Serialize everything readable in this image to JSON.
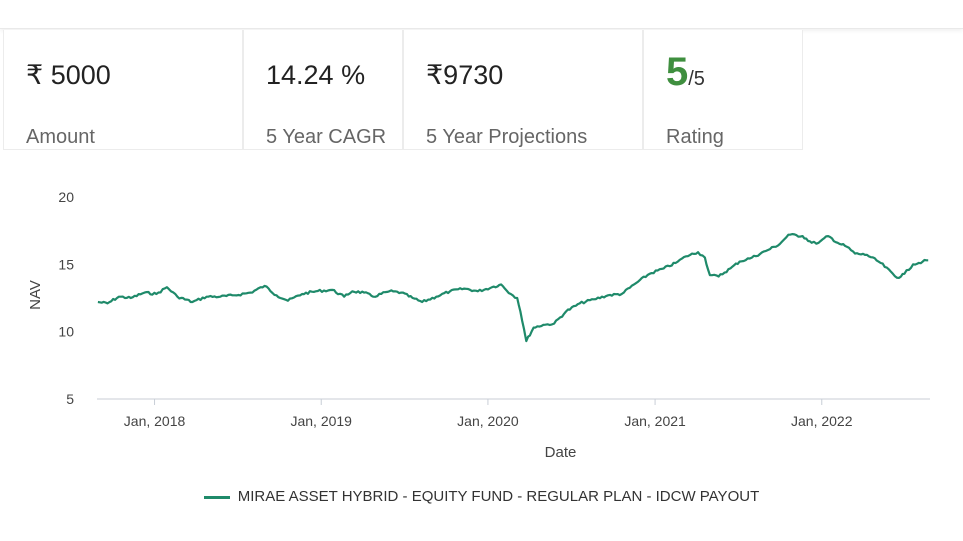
{
  "summary": {
    "amount": {
      "currency_symbol": "₹",
      "value": "5000",
      "label": "Amount"
    },
    "cagr": {
      "value": "14.24 %",
      "label": "5 Year CAGR"
    },
    "projection": {
      "value": "₹9730",
      "label": "5 Year Projections"
    },
    "rating": {
      "value": "5",
      "out_of": "/5",
      "label": "Rating",
      "color": "#3f8f3f"
    }
  },
  "chart_data": {
    "type": "line",
    "xlabel": "Date",
    "ylabel": "NAV",
    "ylim": [
      5,
      20
    ],
    "yticks": [
      5,
      10,
      15,
      20
    ],
    "xlim": [
      "2017-08-28",
      "2022-08-26"
    ],
    "xticks": [
      {
        "date": "2018-01-01",
        "label": "Jan, 2018"
      },
      {
        "date": "2019-01-01",
        "label": "Jan, 2019"
      },
      {
        "date": "2020-01-01",
        "label": "Jan, 2020"
      },
      {
        "date": "2021-01-01",
        "label": "Jan, 2021"
      },
      {
        "date": "2022-01-01",
        "label": "Jan, 2022"
      }
    ],
    "grid": false,
    "legend_position": "bottom-center",
    "series": [
      {
        "name": "MIRAE ASSET HYBRID - EQUITY FUND - REGULAR PLAN - IDCW PAYOUT",
        "color": "#1f8a6a",
        "points": [
          [
            "2017-08-30",
            12.2
          ],
          [
            "2017-09-20",
            12.1
          ],
          [
            "2017-10-15",
            12.6
          ],
          [
            "2017-11-10",
            12.5
          ],
          [
            "2017-12-10",
            12.9
          ],
          [
            "2018-01-05",
            12.8
          ],
          [
            "2018-01-28",
            13.3
          ],
          [
            "2018-02-20",
            12.6
          ],
          [
            "2018-03-25",
            12.2
          ],
          [
            "2018-04-25",
            12.6
          ],
          [
            "2018-05-25",
            12.6
          ],
          [
            "2018-06-25",
            12.7
          ],
          [
            "2018-07-30",
            12.9
          ],
          [
            "2018-08-30",
            13.4
          ],
          [
            "2018-09-25",
            12.7
          ],
          [
            "2018-10-20",
            12.3
          ],
          [
            "2018-11-20",
            12.8
          ],
          [
            "2018-12-20",
            13.0
          ],
          [
            "2019-01-25",
            13.1
          ],
          [
            "2019-02-20",
            12.6
          ],
          [
            "2019-03-10",
            13.0
          ],
          [
            "2019-04-05",
            12.9
          ],
          [
            "2019-04-25",
            12.6
          ],
          [
            "2019-05-30",
            13.0
          ],
          [
            "2019-06-25",
            12.9
          ],
          [
            "2019-07-20",
            12.5
          ],
          [
            "2019-08-10",
            12.2
          ],
          [
            "2019-09-10",
            12.6
          ],
          [
            "2019-10-10",
            13.0
          ],
          [
            "2019-11-10",
            13.2
          ],
          [
            "2019-12-10",
            13.0
          ],
          [
            "2020-01-10",
            13.3
          ],
          [
            "2020-01-30",
            13.5
          ],
          [
            "2020-02-20",
            12.8
          ],
          [
            "2020-03-05",
            12.5
          ],
          [
            "2020-03-12",
            11.5
          ],
          [
            "2020-03-20",
            10.2
          ],
          [
            "2020-03-25",
            9.3
          ],
          [
            "2020-04-10",
            10.3
          ],
          [
            "2020-05-01",
            10.5
          ],
          [
            "2020-05-25",
            10.6
          ],
          [
            "2020-06-20",
            11.5
          ],
          [
            "2020-07-20",
            12.1
          ],
          [
            "2020-08-20",
            12.4
          ],
          [
            "2020-09-20",
            12.7
          ],
          [
            "2020-10-20",
            12.8
          ],
          [
            "2020-11-20",
            13.6
          ],
          [
            "2020-12-20",
            14.3
          ],
          [
            "2021-01-20",
            14.7
          ],
          [
            "2021-02-15",
            15.1
          ],
          [
            "2021-03-10",
            15.6
          ],
          [
            "2021-04-05",
            15.9
          ],
          [
            "2021-04-20",
            15.5
          ],
          [
            "2021-05-01",
            14.2
          ],
          [
            "2021-05-20",
            14.1
          ],
          [
            "2021-06-15",
            14.7
          ],
          [
            "2021-07-05",
            15.2
          ],
          [
            "2021-08-01",
            15.5
          ],
          [
            "2021-09-01",
            16.0
          ],
          [
            "2021-10-01",
            16.5
          ],
          [
            "2021-10-20",
            17.2
          ],
          [
            "2021-11-20",
            17.1
          ],
          [
            "2021-12-10",
            16.6
          ],
          [
            "2021-12-25",
            16.6
          ],
          [
            "2022-01-15",
            17.1
          ],
          [
            "2022-02-05",
            16.6
          ],
          [
            "2022-02-25",
            16.3
          ],
          [
            "2022-03-15",
            15.8
          ],
          [
            "2022-04-10",
            15.7
          ],
          [
            "2022-05-10",
            15.1
          ],
          [
            "2022-06-15",
            14.0
          ],
          [
            "2022-07-01",
            14.3
          ],
          [
            "2022-07-20",
            15.0
          ],
          [
            "2022-08-10",
            15.2
          ],
          [
            "2022-08-22",
            15.3
          ]
        ]
      }
    ]
  }
}
